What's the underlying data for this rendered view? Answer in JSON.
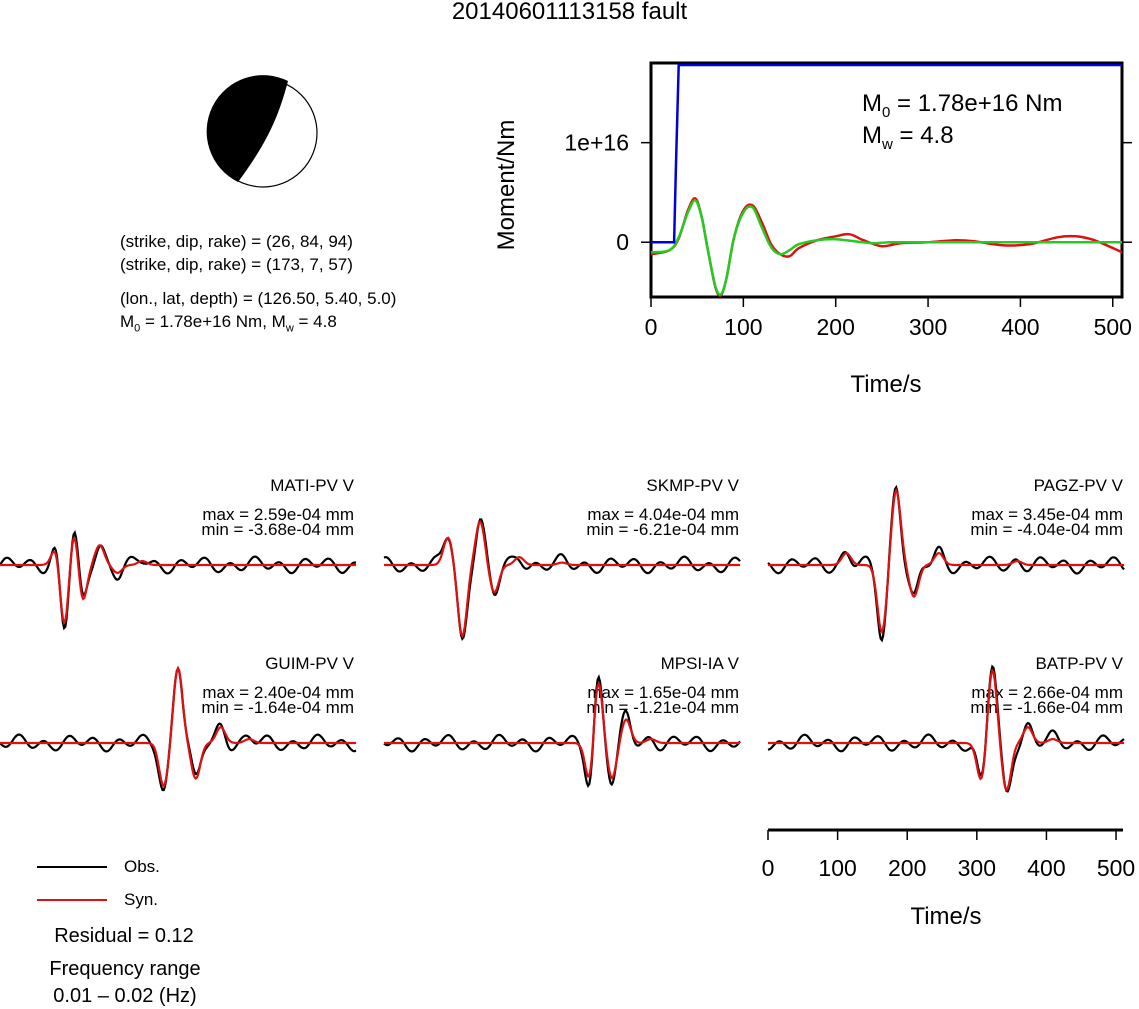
{
  "title": "20140601113158 fault",
  "focal": {
    "line1": "(strike, dip, rake) = (26, 84, 94)",
    "line2": "(strike, dip, rake) = (173, 7, 57)",
    "line3": "(lon., lat, depth) = (126.50, 5.40, 5.0)",
    "line4_m0_prefix": "M",
    "line4_m0_sub": "0",
    "line4_rest": " = 1.78e+16 Nm, M",
    "line4_mw_sub": "w",
    "line4_end": " = 4.8"
  },
  "colors": {
    "obs": "#000000",
    "syn": "#dd1111",
    "moment": "#0000dd",
    "moment_rate": "#22cc22"
  },
  "moment_plot": {
    "ylabel": "Moment/Nm",
    "xlabel": "Time/s",
    "m0_text": " = 1.78e+16 Nm",
    "mw_text": " = 4.8",
    "m_letter": "M",
    "m0_sub": "0",
    "mw_sub": "w",
    "yticks": [
      "1e+16",
      "0"
    ],
    "xticks": [
      "0",
      "100",
      "200",
      "300",
      "400",
      "500"
    ]
  },
  "stations": [
    {
      "name": "MATI-PV V",
      "max": "max = 2.59e-04 mm",
      "min": "min = -3.68e-04 mm"
    },
    {
      "name": "SKMP-PV V",
      "max": "max = 4.04e-04 mm",
      "min": "min = -6.21e-04 mm"
    },
    {
      "name": "PAGZ-PV V",
      "max": "max = 3.45e-04 mm",
      "min": "min = -4.04e-04 mm"
    },
    {
      "name": "GUIM-PV V",
      "max": "max = 2.40e-04 mm",
      "min": "min = -1.64e-04 mm"
    },
    {
      "name": "MPSI-IA V",
      "max": "max = 1.65e-04 mm",
      "min": "min = -1.21e-04 mm"
    },
    {
      "name": "BATP-PV V",
      "max": "max = 2.66e-04 mm",
      "min": "min = -1.66e-04 mm"
    }
  ],
  "legend": {
    "obs": "Obs.",
    "syn": "Syn."
  },
  "residual": "Residual = 0.12",
  "freq_label": "Frequency range",
  "freq_value": "0.01 – 0.02 (Hz)",
  "time_axis": {
    "xlabel": "Time/s",
    "ticks": [
      "0",
      "100",
      "200",
      "300",
      "400",
      "500"
    ]
  },
  "chart_data": [
    {
      "type": "line",
      "title": "",
      "xlabel": "Time/s",
      "ylabel": "Moment/Nm",
      "xlim": [
        0,
        510
      ],
      "ylim": [
        -5500000000000000.0,
        1.8e+16
      ],
      "series": [
        {
          "name": "",
          "color": "#0000dd",
          "x": [
            0,
            25,
            27,
            30,
            510
          ],
          "y": [
            0,
            0,
            7500000000000000.0,
            1.78e+16,
            1.78e+16
          ]
        },
        {
          "name": "",
          "color": "#22cc22",
          "x": [
            0,
            20,
            30,
            40,
            48,
            55,
            62,
            70,
            76,
            82,
            90,
            100,
            110,
            120,
            130,
            140,
            150,
            160,
            180,
            200,
            220,
            240,
            260,
            300,
            350,
            400,
            450,
            510
          ],
          "y": [
            -1000000000000000.0,
            -800000000000000.0,
            500000000000000.0,
            3000000000000000.0,
            4200000000000000.0,
            2500000000000000.0,
            -1000000000000000.0,
            -4500000000000000.0,
            -5200000000000000.0,
            -3500000000000000.0,
            500000000000000.0,
            3000000000000000.0,
            3500000000000000.0,
            1500000000000000.0,
            -500000000000000.0,
            -1200000000000000.0,
            -800000000000000.0,
            -200000000000000.0,
            200000000000000.0,
            300000000000000.0,
            100000000000000.0,
            -100000000000000.0,
            0,
            0,
            0,
            0,
            0,
            0
          ]
        },
        {
          "name": "",
          "color": "#dd1111",
          "x": [
            0,
            20,
            30,
            40,
            48,
            55,
            62,
            70,
            76,
            82,
            90,
            100,
            110,
            120,
            130,
            140,
            150,
            160,
            180,
            200,
            215,
            230,
            250,
            270,
            300,
            330,
            350,
            380,
            410,
            440,
            460,
            480,
            510
          ],
          "y": [
            -1200000000000000.0,
            -800000000000000.0,
            400000000000000.0,
            3200000000000000.0,
            4400000000000000.0,
            2500000000000000.0,
            -1000000000000000.0,
            -4600000000000000.0,
            -5300000000000000.0,
            -3500000000000000.0,
            500000000000000.0,
            3200000000000000.0,
            3700000000000000.0,
            2000000000000000.0,
            -200000000000000.0,
            -1200000000000000.0,
            -1400000000000000.0,
            -600000000000000.0,
            200000000000000.0,
            600000000000000.0,
            800000000000000.0,
            200000000000000.0,
            -400000000000000.0,
            -100000000000000.0,
            0,
            200000000000000.0,
            100000000000000.0,
            -300000000000000.0,
            -200000000000000.0,
            500000000000000.0,
            600000000000000.0,
            200000000000000.0,
            -1000000000000000.0
          ]
        }
      ]
    }
  ]
}
